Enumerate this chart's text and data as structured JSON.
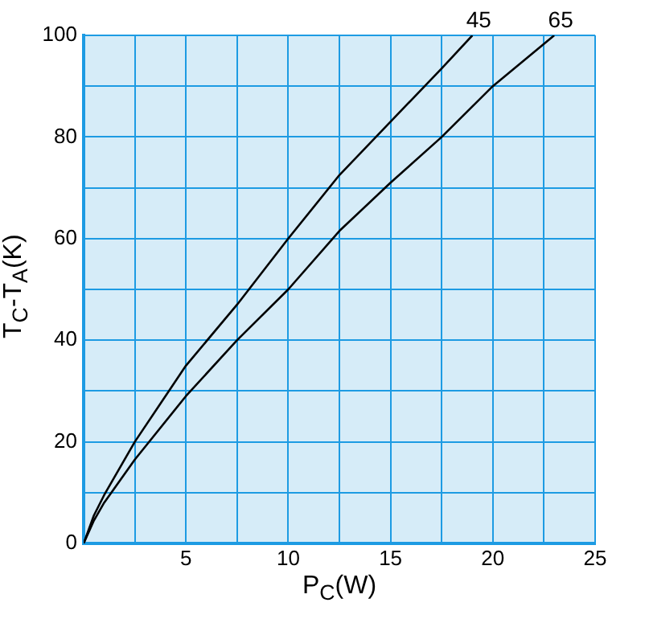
{
  "chart_data": {
    "type": "line",
    "xlabel": "P$_{C}$(W)",
    "ylabel": "T$_{C}$-T$_{A}$(K)",
    "xlim": [
      0,
      25
    ],
    "ylim": [
      0,
      100
    ],
    "xticks": [
      {
        "value": 0,
        "label": null
      },
      {
        "value": 2.5,
        "label": null
      },
      5,
      {
        "value": 7.5,
        "label": null
      },
      10,
      {
        "value": 12.5,
        "label": null
      },
      15,
      {
        "value": 17.5,
        "label": null
      },
      20,
      {
        "value": 22.5,
        "label": null
      },
      25
    ],
    "yticks": [
      0,
      {
        "value": 10,
        "label": null
      },
      20,
      {
        "value": 30,
        "label": null
      },
      40,
      {
        "value": 50,
        "label": null
      },
      60,
      {
        "value": 70,
        "label": null
      },
      80,
      {
        "value": 90,
        "label": null
      },
      100
    ],
    "grid": true,
    "marker": "none",
    "line_style": "solid",
    "series": [
      {
        "name": "45",
        "color": "#000000",
        "x": [
          0,
          0.5,
          1,
          2.5,
          5,
          7.5,
          10,
          12.5,
          15,
          17.5,
          19
        ],
        "values": [
          0,
          5.5,
          9.5,
          20,
          35,
          47,
          60,
          72.5,
          83,
          93.5,
          100
        ]
      },
      {
        "name": "65",
        "color": "#000000",
        "x": [
          0,
          0.5,
          1,
          2.5,
          5,
          7.5,
          10,
          12.5,
          15,
          17.5,
          20,
          23
        ],
        "values": [
          0,
          4.5,
          8,
          16.5,
          29,
          40,
          50,
          61.5,
          71,
          80,
          90,
          100
        ]
      }
    ]
  }
}
